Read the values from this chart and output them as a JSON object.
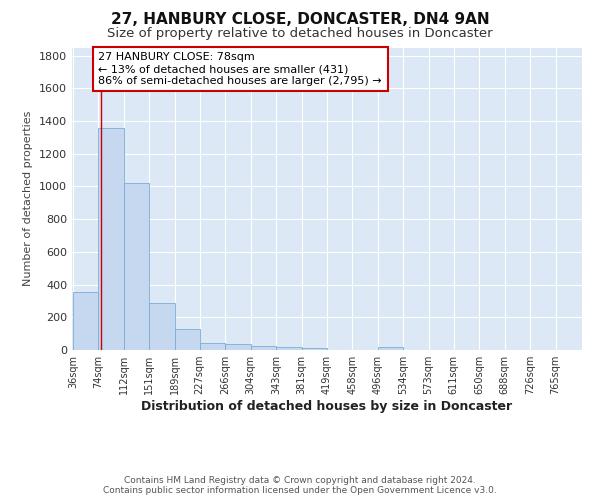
{
  "title": "27, HANBURY CLOSE, DONCASTER, DN4 9AN",
  "subtitle": "Size of property relative to detached houses in Doncaster",
  "xlabel": "Distribution of detached houses by size in Doncaster",
  "ylabel": "Number of detached properties",
  "footer_line1": "Contains HM Land Registry data © Crown copyright and database right 2024.",
  "footer_line2": "Contains public sector information licensed under the Open Government Licence v3.0.",
  "bar_edges": [
    36,
    74,
    112,
    151,
    189,
    227,
    266,
    304,
    343,
    381,
    419,
    458,
    496,
    534,
    573,
    611,
    650,
    688,
    726,
    765,
    803
  ],
  "bar_heights": [
    355,
    1355,
    1020,
    290,
    130,
    40,
    35,
    25,
    20,
    15,
    0,
    0,
    20,
    0,
    0,
    0,
    0,
    0,
    0,
    0
  ],
  "bar_color": "#c5d8ef",
  "bar_edge_color": "#7aadd4",
  "property_line_x": 78,
  "property_line_color": "#cc0000",
  "annotation_text": "27 HANBURY CLOSE: 78sqm\n← 13% of detached houses are smaller (431)\n86% of semi-detached houses are larger (2,795) →",
  "annotation_box_facecolor": "#ffffff",
  "annotation_box_edgecolor": "#cc0000",
  "ylim": [
    0,
    1850
  ],
  "yticks": [
    0,
    200,
    400,
    600,
    800,
    1000,
    1200,
    1400,
    1600,
    1800
  ],
  "fig_bg_color": "#ffffff",
  "plot_bg_color": "#dce8f5",
  "title_fontsize": 11,
  "subtitle_fontsize": 9.5,
  "tick_label_fontsize": 7,
  "ylabel_fontsize": 8,
  "xlabel_fontsize": 9,
  "footer_fontsize": 6.5
}
